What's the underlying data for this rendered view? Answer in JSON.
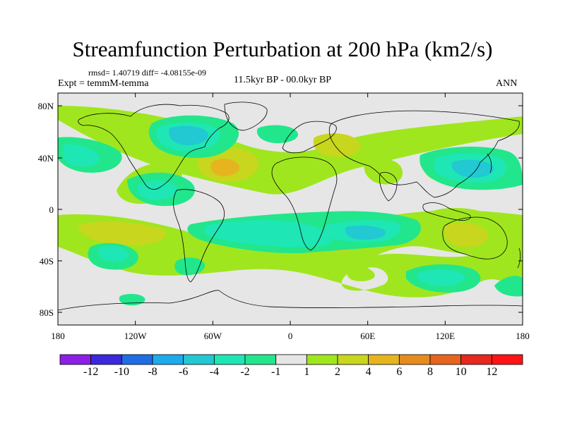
{
  "title": "Streamfunction Perturbation at 200 hPa (km2/s)",
  "stats": "rmsd= 1.40719 diff= -4.08155e-09",
  "experiment": "Expt = temmM-temma",
  "period": "11.5kyr BP - 00.0kyr BP",
  "season": "ANN",
  "lat_labels": [
    "80N",
    "40N",
    "0",
    "40S",
    "80S"
  ],
  "lon_labels": [
    "180",
    "120W",
    "60W",
    "0",
    "60E",
    "120E",
    "180"
  ],
  "colorbar": {
    "labels": [
      "-12",
      "-10",
      "-8",
      "-6",
      "-4",
      "-2",
      "-1",
      "1",
      "2",
      "4",
      "6",
      "8",
      "10",
      "12"
    ],
    "colors": [
      "#8c1ee6",
      "#3c28dc",
      "#1f6ee6",
      "#1eaaeb",
      "#22c8d2",
      "#1ee6b4",
      "#22e68c",
      "#e6e6e6",
      "#a0e61e",
      "#c8d61e",
      "#e6b41e",
      "#e68c1e",
      "#e6641e",
      "#e6281e",
      "#ff1414"
    ]
  },
  "palette": {
    "neutral": "#e6e6e6",
    "neg1": "#22e68c",
    "neg2": "#1ee6b4",
    "neg4": "#22c8d2",
    "neg6": "#1eaaeb",
    "pos1": "#a0e61e",
    "pos2": "#c8d61e",
    "pos4": "#e6b41e"
  }
}
